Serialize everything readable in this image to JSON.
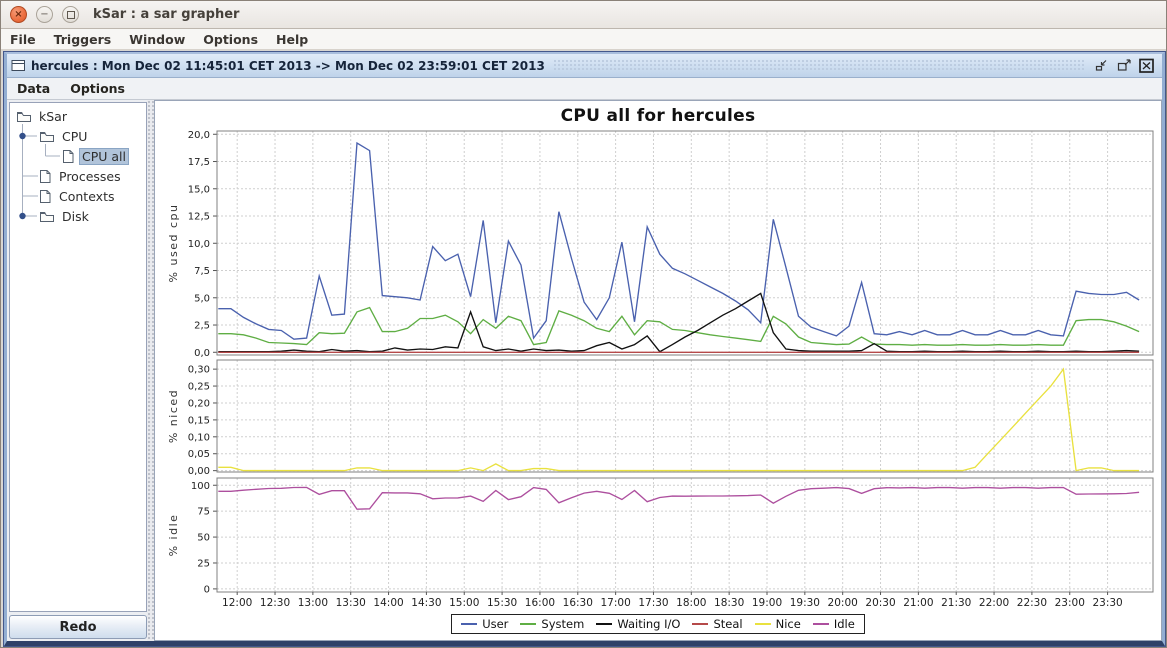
{
  "window": {
    "title": "kSar : a sar grapher",
    "menu": [
      "File",
      "Triggers",
      "Window",
      "Options",
      "Help"
    ]
  },
  "frame": {
    "title": "hercules : Mon Dec 02 11:45:01 CET 2013 -> Mon Dec 02 23:59:01 CET 2013",
    "menu": [
      "Data",
      "Options"
    ]
  },
  "sidebar": {
    "tree": [
      {
        "label": "kSar",
        "icon": "folder",
        "depth": 0,
        "knob": false,
        "selected": false
      },
      {
        "label": "CPU",
        "icon": "folder",
        "depth": 1,
        "knob": true,
        "selected": false
      },
      {
        "label": "CPU all",
        "icon": "document",
        "depth": 2,
        "knob": false,
        "selected": true
      },
      {
        "label": "Processes",
        "icon": "document",
        "depth": 1,
        "knob": false,
        "selected": false
      },
      {
        "label": "Contexts",
        "icon": "document",
        "depth": 1,
        "knob": false,
        "selected": false
      },
      {
        "label": "Disk",
        "icon": "folder",
        "depth": 1,
        "knob": true,
        "selected": false
      }
    ],
    "redo_label": "Redo"
  },
  "colors": {
    "frame_titlebar": "#c9dbef",
    "selection": "#b1c4da",
    "grid": "#cfcfcf",
    "plot_border": "#808080"
  },
  "chart_data": {
    "type": "line",
    "title": "CPU all for hercules",
    "grid": true,
    "legend_position": "bottom",
    "x_tick_labels": [
      "12:00",
      "12:30",
      "13:00",
      "13:30",
      "14:00",
      "14:30",
      "15:00",
      "15:30",
      "16:00",
      "16:30",
      "17:00",
      "17:30",
      "18:00",
      "18:30",
      "19:00",
      "19:30",
      "20:00",
      "20:30",
      "21:00",
      "21:30",
      "22:00",
      "22:30",
      "23:00",
      "23:30"
    ],
    "x": [
      "11:45",
      "11:55",
      "12:05",
      "12:15",
      "12:25",
      "12:35",
      "12:45",
      "12:55",
      "13:05",
      "13:15",
      "13:25",
      "13:35",
      "13:45",
      "13:55",
      "14:05",
      "14:15",
      "14:25",
      "14:35",
      "14:45",
      "14:55",
      "15:05",
      "15:15",
      "15:25",
      "15:35",
      "15:45",
      "15:55",
      "16:05",
      "16:15",
      "16:25",
      "16:35",
      "16:45",
      "16:55",
      "17:05",
      "17:15",
      "17:25",
      "17:35",
      "17:45",
      "17:55",
      "18:05",
      "18:15",
      "18:25",
      "18:35",
      "18:45",
      "18:55",
      "19:05",
      "19:15",
      "19:25",
      "19:35",
      "19:45",
      "19:55",
      "20:05",
      "20:15",
      "20:25",
      "20:35",
      "20:45",
      "20:55",
      "21:05",
      "21:15",
      "21:25",
      "21:35",
      "21:45",
      "21:55",
      "22:05",
      "22:15",
      "22:25",
      "22:35",
      "22:45",
      "22:55",
      "23:05",
      "23:15",
      "23:25",
      "23:35",
      "23:45",
      "23:55"
    ],
    "subplots": [
      {
        "ylabel": "% used cpu",
        "ylim": [
          0,
          20
        ],
        "yticks": [
          0,
          2.5,
          5,
          7.5,
          10,
          12.5,
          15,
          17.5,
          20
        ],
        "ytick_labels": [
          "0,0",
          "2,5",
          "5,0",
          "7,5",
          "10,0",
          "12,5",
          "15,0",
          "17,5",
          "20,0"
        ],
        "series": [
          {
            "name": "User",
            "color": "#4a61ae",
            "values": [
              4.0,
              4.0,
              3.2,
              2.6,
              2.1,
              2.0,
              1.2,
              1.3,
              7.0,
              3.4,
              3.5,
              19.2,
              18.5,
              5.2,
              5.1,
              5.0,
              4.8,
              9.7,
              8.4,
              9.0,
              5.1,
              12.1,
              2.7,
              10.2,
              8.0,
              1.3,
              2.9,
              12.9,
              8.6,
              4.6,
              3.0,
              5.0,
              10.1,
              2.8,
              11.5,
              9.0,
              7.7,
              7.2,
              6.6,
              6.0,
              5.4,
              4.7,
              3.9,
              2.7,
              12.2,
              7.8,
              3.3,
              2.3,
              1.9,
              1.5,
              2.4,
              6.4,
              1.7,
              1.6,
              1.9,
              1.6,
              2.0,
              1.6,
              1.6,
              2.0,
              1.6,
              1.6,
              2.0,
              1.6,
              1.6,
              2.0,
              1.6,
              1.5,
              5.6,
              5.4,
              5.3,
              5.3,
              5.5,
              4.8
            ]
          },
          {
            "name": "System",
            "color": "#5fae44",
            "values": [
              1.7,
              1.7,
              1.6,
              1.3,
              0.9,
              0.85,
              0.8,
              0.7,
              1.8,
              1.7,
              1.75,
              3.7,
              4.1,
              1.9,
              1.9,
              2.2,
              3.1,
              3.1,
              3.4,
              2.8,
              1.7,
              3.0,
              2.2,
              3.3,
              2.9,
              0.7,
              0.9,
              3.8,
              3.4,
              2.9,
              2.2,
              1.9,
              3.3,
              1.6,
              2.9,
              2.8,
              2.1,
              2.0,
              1.8,
              1.6,
              1.45,
              1.3,
              1.15,
              1.0,
              3.3,
              2.6,
              1.4,
              0.9,
              0.8,
              0.7,
              0.75,
              1.4,
              0.75,
              0.7,
              0.7,
              0.65,
              0.7,
              0.65,
              0.65,
              0.7,
              0.65,
              0.65,
              0.7,
              0.65,
              0.65,
              0.7,
              0.65,
              0.65,
              2.9,
              3.0,
              3.0,
              2.8,
              2.4,
              1.9
            ]
          },
          {
            "name": "Waiting I/O",
            "color": "#111111",
            "values": [
              0.05,
              0.05,
              0.05,
              0.05,
              0.05,
              0.1,
              0.2,
              0.1,
              0.05,
              0.25,
              0.1,
              0.15,
              0.05,
              0.1,
              0.4,
              0.2,
              0.3,
              0.25,
              0.5,
              0.4,
              3.7,
              0.5,
              0.15,
              0.3,
              0.1,
              0.3,
              0.15,
              0.2,
              0.1,
              0.15,
              0.6,
              0.9,
              0.3,
              0.7,
              1.5,
              0.05,
              0.7,
              1.4,
              2.0,
              2.7,
              3.4,
              4.0,
              4.7,
              5.4,
              1.8,
              0.3,
              0.15,
              0.1,
              0.1,
              0.1,
              0.1,
              0.15,
              0.8,
              0.1,
              0.05,
              0.05,
              0.1,
              0.05,
              0.05,
              0.1,
              0.05,
              0.05,
              0.1,
              0.05,
              0.05,
              0.1,
              0.05,
              0.05,
              0.1,
              0.05,
              0.05,
              0.1,
              0.15,
              0.1
            ]
          },
          {
            "name": "Steal",
            "color": "#b5494a",
            "values": [
              0,
              0,
              0,
              0,
              0,
              0,
              0,
              0,
              0,
              0,
              0,
              0,
              0,
              0,
              0,
              0,
              0,
              0,
              0,
              0,
              0,
              0,
              0,
              0,
              0,
              0,
              0,
              0,
              0,
              0,
              0,
              0,
              0,
              0,
              0,
              0,
              0,
              0,
              0,
              0,
              0,
              0,
              0,
              0,
              0,
              0,
              0,
              0,
              0,
              0,
              0,
              0,
              0,
              0,
              0,
              0,
              0,
              0,
              0,
              0,
              0,
              0,
              0,
              0,
              0,
              0,
              0,
              0,
              0,
              0,
              0,
              0,
              0,
              0
            ]
          }
        ]
      },
      {
        "ylabel": "% niced",
        "ylim": [
          0,
          0.3
        ],
        "yticks": [
          0,
          0.05,
          0.1,
          0.15,
          0.2,
          0.25,
          0.3
        ],
        "ytick_labels": [
          "0,00",
          "0,05",
          "0,10",
          "0,15",
          "0,20",
          "0,25",
          "0,30"
        ],
        "series": [
          {
            "name": "Nice",
            "color": "#e9e13f",
            "values": [
              0.01,
              0.01,
              0,
              0,
              0,
              0,
              0,
              0,
              0,
              0,
              0,
              0.008,
              0.008,
              0,
              0,
              0,
              0,
              0,
              0,
              0,
              0.008,
              0,
              0.02,
              0,
              0,
              0.006,
              0.006,
              0,
              0,
              0,
              0,
              0,
              0,
              0,
              0,
              0,
              0,
              0,
              0,
              0,
              0,
              0,
              0,
              0,
              0,
              0,
              0,
              0,
              0,
              0,
              0,
              0,
              0,
              0,
              0,
              0,
              0,
              0,
              0,
              0,
              0.01,
              0.05,
              0.09,
              0.13,
              0.17,
              0.21,
              0.25,
              0.3,
              0,
              0.008,
              0.008,
              0,
              0,
              0
            ]
          }
        ]
      },
      {
        "ylabel": "% idle",
        "ylim": [
          0,
          100
        ],
        "yticks": [
          0,
          25,
          50,
          75,
          100
        ],
        "ytick_labels": [
          "0",
          "25",
          "50",
          "75",
          "100"
        ],
        "series": [
          {
            "name": "Idle",
            "color": "#ad4f9e",
            "values": [
              94.2,
              94.2,
              95.2,
              96.1,
              96.9,
              97.1,
              97.8,
              97.9,
              91.2,
              94.7,
              94.7,
              76.9,
              77.3,
              92.8,
              92.6,
              92.6,
              91.8,
              86.9,
              87.7,
              87.8,
              89.5,
              84.4,
              94.9,
              86.2,
              89.0,
              97.7,
              96.0,
              83.1,
              87.9,
              92.4,
              94.2,
              92.2,
              86.3,
              94.9,
              84.1,
              88.2,
              89.5,
              89.4,
              89.5,
              89.6,
              89.6,
              89.8,
              90.0,
              90.6,
              82.7,
              89.3,
              95.1,
              96.7,
              97.2,
              97.7,
              96.8,
              92.1,
              96.7,
              97.6,
              97.4,
              97.7,
              97.2,
              97.7,
              97.7,
              97.2,
              97.7,
              97.7,
              97.2,
              97.7,
              97.7,
              97.2,
              97.7,
              97.8,
              91.4,
              91.6,
              91.7,
              91.8,
              92.0,
              93.2
            ]
          }
        ]
      }
    ]
  }
}
